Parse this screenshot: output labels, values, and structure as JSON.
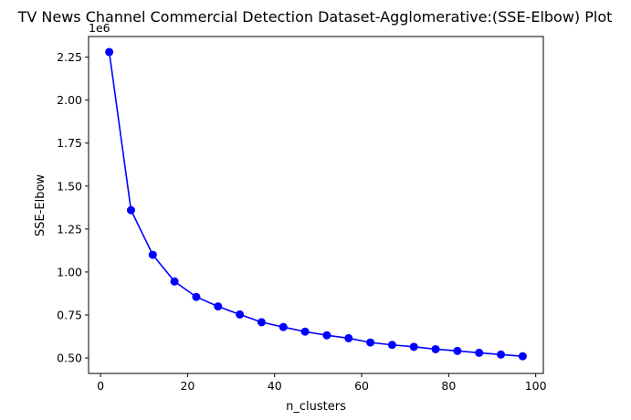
{
  "chart_data": {
    "type": "line",
    "title": "TV News Channel Commercial Detection Dataset-Agglomerative:(SSE-Elbow) Plot",
    "xlabel": "n_clusters",
    "ylabel": "SSE-Elbow",
    "y_offset_label": "1e6",
    "xlim": [
      -2.75,
      101.75
    ],
    "ylim": [
      0.41,
      2.37
    ],
    "x_ticks": [
      0,
      20,
      40,
      60,
      80,
      100
    ],
    "x_tick_labels": [
      "0",
      "20",
      "40",
      "60",
      "80",
      "100"
    ],
    "y_ticks": [
      0.5,
      0.75,
      1.0,
      1.25,
      1.5,
      1.75,
      2.0,
      2.25
    ],
    "y_tick_labels": [
      "0.50",
      "0.75",
      "1.00",
      "1.25",
      "1.50",
      "1.75",
      "2.00",
      "2.25"
    ],
    "grid": false,
    "line_color": "#0000ff",
    "marker": "circle",
    "series": [
      {
        "x": [
          2,
          7,
          12,
          17,
          22,
          27,
          32,
          37,
          42,
          47,
          52,
          57,
          62,
          67,
          72,
          77,
          82,
          87,
          92,
          97
        ],
        "values": [
          2.28,
          1.36,
          1.1,
          0.945,
          0.855,
          0.8,
          0.753,
          0.708,
          0.68,
          0.653,
          0.632,
          0.615,
          0.59,
          0.576,
          0.565,
          0.551,
          0.541,
          0.53,
          0.52,
          0.51
        ]
      }
    ]
  }
}
